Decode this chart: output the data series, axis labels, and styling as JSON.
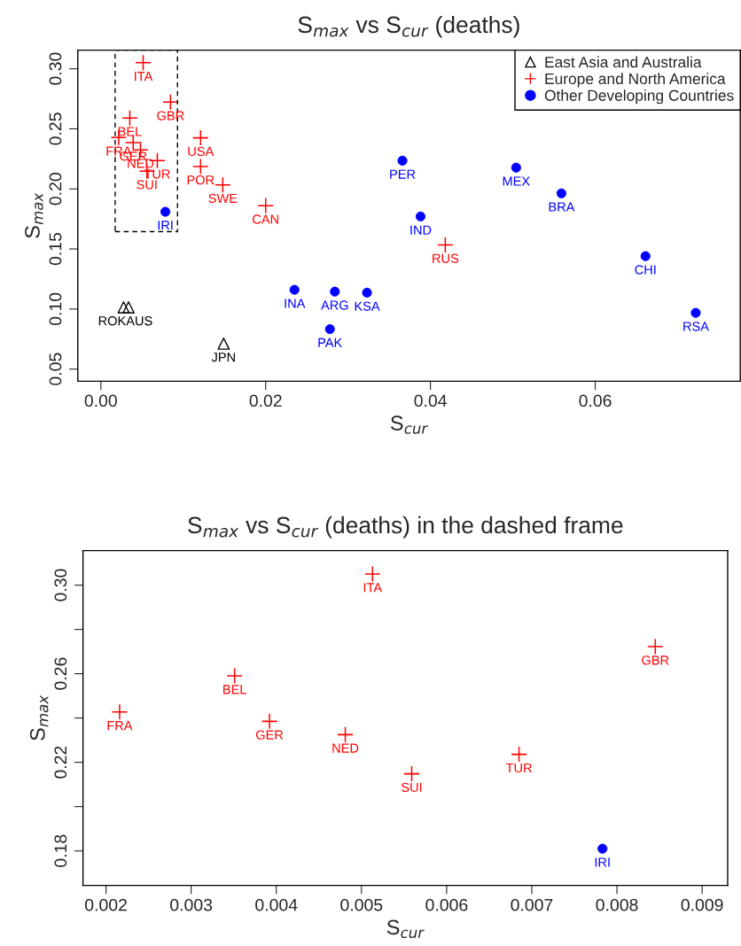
{
  "chart_data": [
    {
      "type": "scatter",
      "title": "S$_{max}$ vs S$_{cur}$ (deaths)",
      "xlabel": "S$_{cur}$",
      "ylabel": "S$_{max}$",
      "xlim": [
        -0.0028,
        0.0776
      ],
      "ylim": [
        0.0399,
        0.3155
      ],
      "xticks": [
        {
          "value": 0,
          "label": "0.00"
        },
        0.02,
        0.04,
        0.06
      ],
      "yticks": [
        0.05,
        {
          "value": 0.1,
          "label": "0.10"
        },
        0.15,
        {
          "value": 0.2,
          "label": "0.20"
        },
        0.25,
        {
          "value": 0.3,
          "label": "0.30"
        }
      ],
      "grid": false,
      "legend": "top right",
      "series": [
        {
          "name": "East Asia and Australia",
          "color": "#000000",
          "marker": "triangle",
          "x": [
            0.00276,
            0.00336,
            0.0149
          ],
          "values": [
            0.1014,
            0.1014,
            0.0712
          ]
        },
        {
          "name": "Europe and North America",
          "color": "#ff0000",
          "marker": "cross",
          "x": [
            0.00513,
            0.00845,
            0.00351,
            0.00216,
            0.00392,
            0.00481,
            0.00685,
            0.00559,
            0.0121,
            0.0121,
            0.0148,
            0.02,
            0.0418
          ],
          "values": [
            0.305,
            0.2722,
            0.259,
            0.2427,
            0.2385,
            0.2325,
            0.2236,
            0.2148,
            0.2425,
            0.2187,
            0.2034,
            0.186,
            0.1534
          ]
        },
        {
          "name": "Other Developing Countries",
          "color": "#0000ff",
          "marker": "circle",
          "x": [
            0.00783,
            0.0235,
            0.0284,
            0.0323,
            0.0278,
            0.0366,
            0.0388,
            0.0504,
            0.0559,
            0.0661,
            0.0722
          ],
          "values": [
            0.181,
            0.116,
            0.1145,
            0.1136,
            0.0833,
            0.2235,
            0.177,
            0.2177,
            0.1963,
            0.144,
            0.0968
          ]
        }
      ],
      "annotations": [
        {
          "text": "ROK",
          "x": 0.00276,
          "y": 0.1014
        },
        {
          "text": "AUS",
          "x": 0.00336,
          "y": 0.1014
        },
        {
          "text": "JPN",
          "x": 0.0149,
          "y": 0.0712
        },
        {
          "text": "ITA",
          "x": 0.00513,
          "y": 0.305
        },
        {
          "text": "GBR",
          "x": 0.00845,
          "y": 0.2722
        },
        {
          "text": "BEL",
          "x": 0.00351,
          "y": 0.259
        },
        {
          "text": "FRA",
          "x": 0.00216,
          "y": 0.2427
        },
        {
          "text": "GER",
          "x": 0.00392,
          "y": 0.2385
        },
        {
          "text": "NED",
          "x": 0.00481,
          "y": 0.2325
        },
        {
          "text": "TUR",
          "x": 0.00685,
          "y": 0.2236
        },
        {
          "text": "SUI",
          "x": 0.00559,
          "y": 0.2148
        },
        {
          "text": "USA",
          "x": 0.0121,
          "y": 0.2425
        },
        {
          "text": "POR",
          "x": 0.0121,
          "y": 0.2187
        },
        {
          "text": "SWE",
          "x": 0.0148,
          "y": 0.2034
        },
        {
          "text": "CAN",
          "x": 0.02,
          "y": 0.186
        },
        {
          "text": "RUS",
          "x": 0.0418,
          "y": 0.1534
        },
        {
          "text": "IRI",
          "x": 0.00783,
          "y": 0.181
        },
        {
          "text": "INA",
          "x": 0.0235,
          "y": 0.116
        },
        {
          "text": "ARG",
          "x": 0.0284,
          "y": 0.1145
        },
        {
          "text": "KSA",
          "x": 0.0323,
          "y": 0.1136
        },
        {
          "text": "PAK",
          "x": 0.0278,
          "y": 0.0833
        },
        {
          "text": "PER",
          "x": 0.0366,
          "y": 0.2235
        },
        {
          "text": "IND",
          "x": 0.0388,
          "y": 0.177
        },
        {
          "text": "MEX",
          "x": 0.0504,
          "y": 0.2177
        },
        {
          "text": "BRA",
          "x": 0.0559,
          "y": 0.1963
        },
        {
          "text": "CHI",
          "x": 0.0661,
          "y": 0.144
        },
        {
          "text": "RSA",
          "x": 0.0722,
          "y": 0.0968
        }
      ]
    },
    {
      "type": "scatter",
      "title": "S$_{max}$ vs S$_{cur}$ (deaths) in the dashed frame",
      "xlabel": "S$_{cur}$",
      "ylabel": "S$_{max}$",
      "xlim": [
        0.00173,
        0.0093
      ],
      "ylim": [
        0.1644,
        0.3156
      ],
      "xticks": [
        0.002,
        0.003,
        0.004,
        0.005,
        0.006,
        0.007,
        0.008,
        0.009
      ],
      "yticks": [
        {
          "value": 0.18,
          "label": "0.18"
        },
        {
          "value": 0.2,
          "label": null
        },
        {
          "value": 0.22,
          "label": "0.22"
        },
        {
          "value": 0.24,
          "label": null
        },
        {
          "value": 0.26,
          "label": "0.26"
        },
        {
          "value": 0.28,
          "label": null
        },
        {
          "value": 0.3,
          "label": "0.30"
        }
      ],
      "grid": false,
      "series": [
        {
          "color": "#ff0000",
          "marker": "cross",
          "x": [
            0.00216,
            0.00351,
            0.00392,
            0.00481,
            0.00513,
            0.00559,
            0.00685,
            0.00845
          ],
          "values": [
            0.2427,
            0.259,
            0.2385,
            0.2325,
            0.305,
            0.2148,
            0.2236,
            0.2722
          ]
        },
        {
          "color": "#0000ff",
          "marker": "circle",
          "x": [
            0.00783
          ],
          "values": [
            0.181
          ]
        }
      ],
      "annotations": [
        {
          "text": "FRA",
          "x": 0.00216,
          "y": 0.2427
        },
        {
          "text": "BEL",
          "x": 0.00351,
          "y": 0.259
        },
        {
          "text": "GER",
          "x": 0.00392,
          "y": 0.2385
        },
        {
          "text": "NED",
          "x": 0.00481,
          "y": 0.2325
        },
        {
          "text": "ITA",
          "x": 0.00513,
          "y": 0.305
        },
        {
          "text": "SUI",
          "x": 0.00559,
          "y": 0.2148
        },
        {
          "text": "TUR",
          "x": 0.00685,
          "y": 0.2236
        },
        {
          "text": "GBR",
          "x": 0.00845,
          "y": 0.2722
        },
        {
          "text": "IRI",
          "x": 0.00783,
          "y": 0.181
        }
      ]
    }
  ]
}
